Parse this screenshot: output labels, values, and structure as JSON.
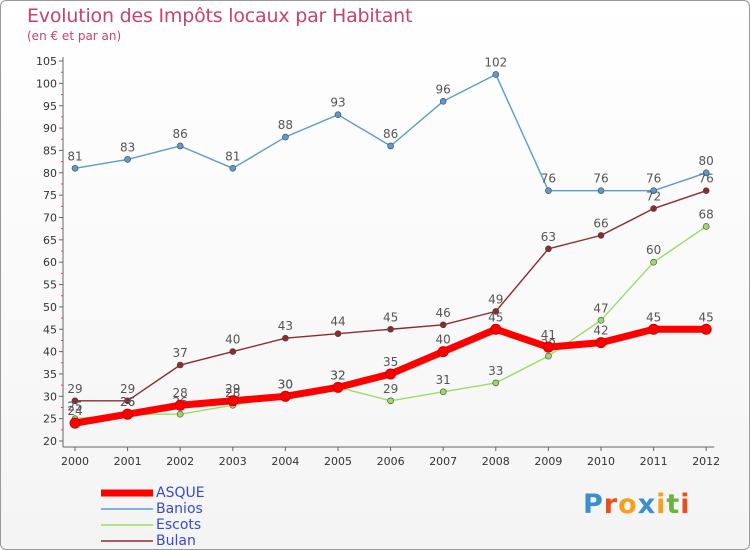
{
  "header": {
    "title": "Evolution des Impôts locaux par Habitant",
    "subtitle": "(en € et par an)"
  },
  "logo": {
    "text": "Proxiti",
    "colors": [
      "#3a8fd0",
      "#e94e1b",
      "#f4a020",
      "#3a8fd0",
      "#f4a020",
      "#6cb33f",
      "#e94e1b"
    ]
  },
  "chart_data": {
    "type": "line",
    "title": "Evolution des Impôts locaux par Habitant",
    "subtitle": "(en € et par an)",
    "xlabel": "",
    "ylabel": "",
    "x": [
      "2000",
      "2001",
      "2002",
      "2003",
      "2004",
      "2005",
      "2006",
      "2007",
      "2008",
      "2009",
      "2010",
      "2011",
      "2012"
    ],
    "yticks": [
      "20",
      "25",
      "30",
      "35",
      "40",
      "45",
      "50",
      "55",
      "60",
      "65",
      "70",
      "75",
      "80",
      "85",
      "90",
      "95",
      "100",
      "105"
    ],
    "ylim": [
      20,
      105
    ],
    "grid": false,
    "legend_position": "bottom-left",
    "series": [
      {
        "name": "Banios",
        "color": "#5b9bd1",
        "values": [
          81,
          83,
          86,
          81,
          88,
          93,
          86,
          96,
          102,
          76,
          76,
          76,
          80
        ],
        "labels": [
          "81",
          "83",
          "86",
          "81",
          "88",
          "93",
          "86",
          "96",
          "102",
          "76",
          "76",
          "76",
          "80"
        ]
      },
      {
        "name": "Bulan",
        "color": "#8b2c32",
        "values": [
          29,
          29,
          37,
          40,
          43,
          44,
          45,
          46,
          49,
          63,
          66,
          72,
          76
        ],
        "labels": [
          "29",
          "29",
          "37",
          "40",
          "43",
          "44",
          "45",
          "46",
          "49",
          "63",
          "66",
          "72",
          "76"
        ]
      },
      {
        "name": "Escots",
        "color": "#99dd66",
        "values": [
          25,
          26,
          26,
          28,
          30,
          32,
          29,
          31,
          33,
          39,
          47,
          60,
          68
        ],
        "labels": [
          "25",
          "26",
          "26",
          "28",
          "30",
          "32",
          "29",
          "31",
          "33",
          "39",
          "47",
          "60",
          "68"
        ]
      },
      {
        "name": "ASQUE",
        "color": "#ff0000",
        "values": [
          24,
          26,
          28,
          29,
          30,
          32,
          35,
          40,
          45,
          41,
          42,
          45,
          45
        ],
        "labels": [
          "24",
          "26",
          "28",
          "29",
          "30",
          "32",
          "35",
          "40",
          "45",
          "41",
          "42",
          "45",
          "45"
        ]
      }
    ],
    "legend": [
      "ASQUE",
      "Banios",
      "Escots",
      "Bulan"
    ]
  }
}
